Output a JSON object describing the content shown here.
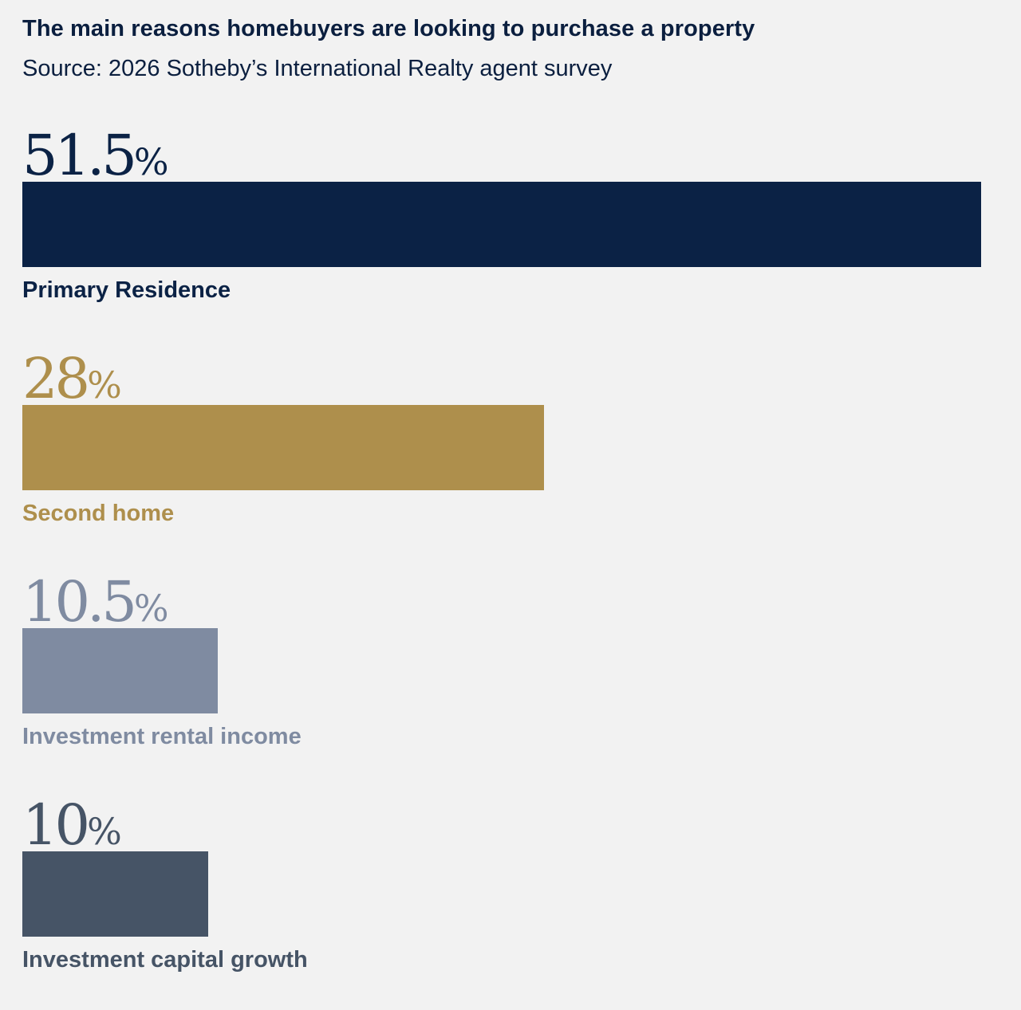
{
  "chart_data": {
    "type": "bar",
    "orientation": "horizontal",
    "title": "The main reasons homebuyers are looking to purchase a property",
    "subtitle": "Source: 2026 Sotheby’s International Realty agent survey",
    "unit": "%",
    "xlim": [
      0,
      51.5
    ],
    "grid": false,
    "categories": [
      "Primary Residence",
      "Second home",
      "Investment rental income",
      "Investment capital growth"
    ],
    "values": [
      51.5,
      28,
      10.5,
      10
    ],
    "value_labels": [
      "51.5",
      "28",
      "10.5",
      "10"
    ],
    "colors": [
      "#0b2245",
      "#ae8f4c",
      "#7f8ba1",
      "#465466"
    ]
  }
}
